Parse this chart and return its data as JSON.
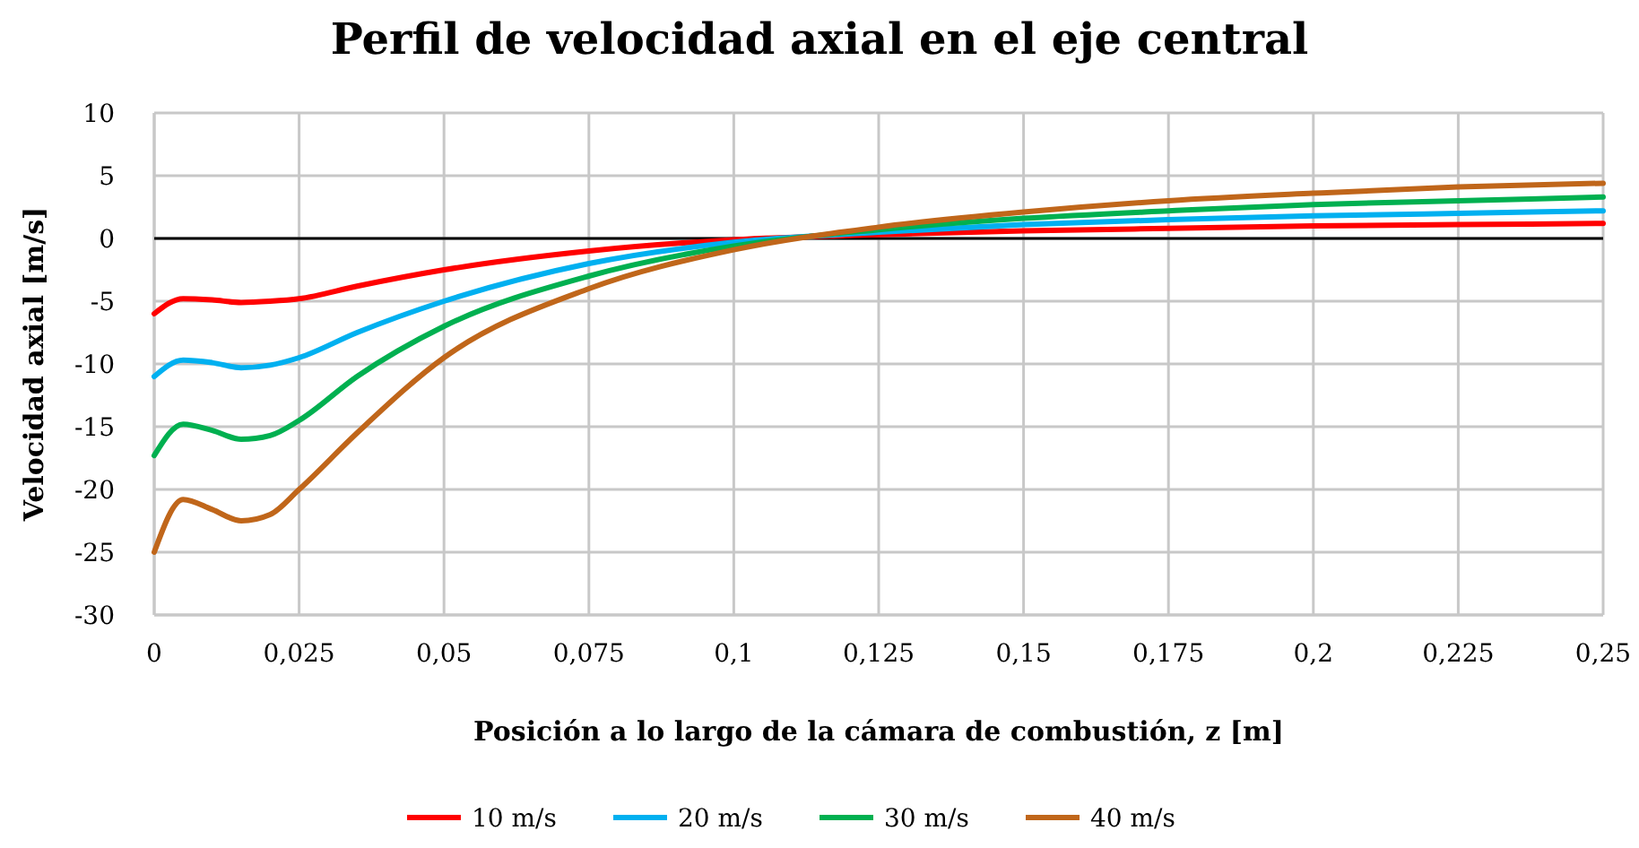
{
  "chart_data": {
    "type": "line",
    "title": "Perfil de velocidad axial en el eje central",
    "xlabel": "Posición a lo largo de la cámara de combustión, z [m]",
    "ylabel": "Velocidad axial [m/s]",
    "x": [
      0,
      0.005,
      0.01,
      0.015,
      0.02,
      0.025,
      0.035,
      0.05,
      0.075,
      0.1,
      0.125,
      0.15,
      0.175,
      0.2,
      0.225,
      0.25
    ],
    "series": [
      {
        "name": "10 m/s",
        "color": "#ff0000",
        "values": [
          -6,
          -4.8,
          -4.9,
          -5.1,
          -5.0,
          -4.8,
          -3.8,
          -2.5,
          -1.0,
          -0.1,
          0.3,
          0.6,
          0.8,
          1.0,
          1.1,
          1.2
        ]
      },
      {
        "name": "20 m/s",
        "color": "#00b0f0",
        "values": [
          -11,
          -9.7,
          -9.9,
          -10.3,
          -10.1,
          -9.5,
          -7.5,
          -5,
          -2,
          -0.3,
          0.5,
          1.1,
          1.5,
          1.8,
          2.0,
          2.2
        ]
      },
      {
        "name": "30 m/s",
        "color": "#00b050",
        "values": [
          -17.3,
          -14.8,
          -15.3,
          -16,
          -15.7,
          -14.5,
          -11,
          -7,
          -3,
          -0.6,
          0.7,
          1.6,
          2.2,
          2.7,
          3.0,
          3.3
        ]
      },
      {
        "name": "40 m/s",
        "color": "#c0661a",
        "values": [
          -25,
          -20.8,
          -21.6,
          -22.5,
          -22,
          -20,
          -15.5,
          -9.5,
          -4,
          -0.9,
          0.9,
          2.1,
          3.0,
          3.6,
          4.1,
          4.4
        ]
      }
    ],
    "xlim": [
      0,
      0.25
    ],
    "xticks": [
      0,
      {
        "value": 0.025,
        "label": "0,025"
      },
      {
        "value": 0.05,
        "label": "0,05"
      },
      {
        "value": 0.075,
        "label": "0,075"
      },
      {
        "value": 0.1,
        "label": "0,1"
      },
      {
        "value": 0.125,
        "label": "0,125"
      },
      {
        "value": 0.15,
        "label": "0,15"
      },
      {
        "value": 0.175,
        "label": "0,175"
      },
      {
        "value": 0.2,
        "label": "0,2"
      },
      {
        "value": 0.225,
        "label": "0,225"
      },
      {
        "value": 0.25,
        "label": "0,25"
      }
    ],
    "ylim": [
      -30,
      10
    ],
    "yticks": [
      -30,
      -25,
      -20,
      -15,
      -10,
      -5,
      0,
      5,
      10
    ],
    "ref_lines": [
      {
        "axis": "y",
        "value": 0,
        "color": "#000000"
      }
    ],
    "grid": true,
    "legend": "bottom",
    "marker": "none",
    "line_style": "solid"
  }
}
